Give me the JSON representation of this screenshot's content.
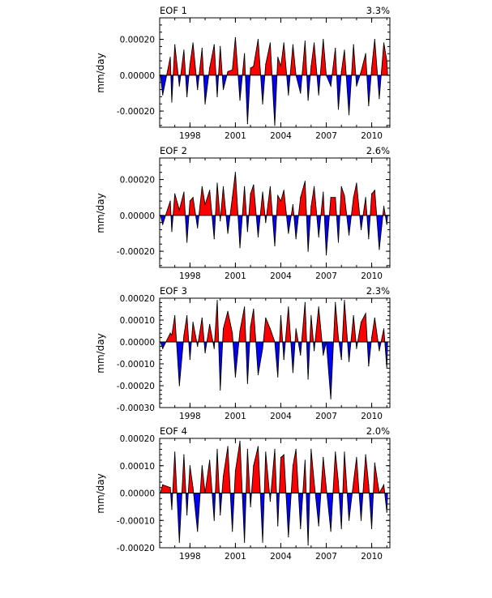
{
  "colors": {
    "positive": "#ff0000",
    "negative": "#0000ff",
    "line": "#000000"
  },
  "chart_data": [
    {
      "type": "area",
      "title": "EOF 1",
      "subtitle": "3.3%",
      "ylabel": "mm/day",
      "ylim": [
        -0.00029,
        0.00032
      ],
      "yticks": [
        -0.0002,
        0.0,
        0.0002
      ],
      "ytick_labels": [
        "-0.00020",
        "0.00000",
        "0.00020"
      ],
      "xlim": [
        1996.0,
        2011.2
      ],
      "xticks": [
        1998,
        2001,
        2004,
        2007,
        2010
      ],
      "xtick_labels": [
        "1998",
        "2001",
        "2004",
        "2007",
        "2010"
      ],
      "grid": false,
      "x": [
        1996.2,
        1996.7,
        1996.8,
        1997.0,
        1997.3,
        1997.6,
        1997.8,
        1998.0,
        1998.2,
        1998.5,
        1998.8,
        1999.0,
        1999.3,
        1999.6,
        1999.8,
        2000.0,
        2000.2,
        2000.5,
        2000.8,
        2001.0,
        2001.3,
        2001.6,
        2001.8,
        2002.0,
        2002.2,
        2002.5,
        2002.8,
        2003.0,
        2003.3,
        2003.6,
        2003.8,
        2004.0,
        2004.2,
        2004.5,
        2004.8,
        2005.0,
        2005.3,
        2005.6,
        2005.8,
        2006.0,
        2006.2,
        2006.5,
        2006.8,
        2007.0,
        2007.3,
        2007.6,
        2007.8,
        2008.0,
        2008.2,
        2008.5,
        2008.8,
        2009.0,
        2009.3,
        2009.6,
        2009.8,
        2010.0,
        2010.2,
        2010.5,
        2010.8,
        2011.0
      ],
      "values": [
        -0.00011,
        0.0001,
        -0.00015,
        0.00017,
        -6e-05,
        0.00014,
        -0.00012,
        6e-05,
        0.00018,
        -8e-05,
        0.00015,
        -0.00016,
        4e-05,
        0.00017,
        -0.00012,
        0.00016,
        -8e-05,
        2e-05,
        3e-05,
        0.00021,
        -0.00014,
        0.00012,
        -0.00027,
        4e-05,
        5e-05,
        0.0002,
        -0.00016,
        6e-05,
        0.00018,
        -0.00028,
        0.0001,
        5e-05,
        0.00018,
        -0.00011,
        0.00017,
        0.0,
        -0.0001,
        0.00019,
        -0.00014,
        5e-05,
        0.00018,
        -0.00011,
        0.0002,
        0.0,
        -6e-05,
        0.00015,
        -0.00019,
        2e-05,
        0.00014,
        -0.00022,
        0.00017,
        -6e-05,
        2e-05,
        0.00012,
        -0.00017,
        4e-05,
        0.0002,
        -0.00013,
        0.00018,
        8e-05
      ]
    },
    {
      "type": "area",
      "title": "EOF 2",
      "subtitle": "2.6%",
      "ylabel": "mm/day",
      "ylim": [
        -0.00029,
        0.00032
      ],
      "yticks": [
        -0.0002,
        0.0,
        0.0002
      ],
      "ytick_labels": [
        "-0.00020",
        "0.00000",
        "0.00020"
      ],
      "xlim": [
        1996.0,
        2011.2
      ],
      "xticks": [
        1998,
        2001,
        2004,
        2007,
        2010
      ],
      "xtick_labels": [
        "1998",
        "2001",
        "2004",
        "2007",
        "2010"
      ],
      "grid": false,
      "x": [
        1996.2,
        1996.7,
        1996.8,
        1997.0,
        1997.3,
        1997.6,
        1997.8,
        1998.0,
        1998.2,
        1998.5,
        1998.8,
        1999.0,
        1999.3,
        1999.6,
        1999.8,
        2000.0,
        2000.2,
        2000.5,
        2000.8,
        2001.0,
        2001.3,
        2001.6,
        2001.8,
        2002.0,
        2002.2,
        2002.5,
        2002.8,
        2003.0,
        2003.3,
        2003.6,
        2003.8,
        2004.0,
        2004.2,
        2004.5,
        2004.8,
        2005.0,
        2005.3,
        2005.6,
        2005.8,
        2006.0,
        2006.2,
        2006.5,
        2006.8,
        2007.0,
        2007.3,
        2007.6,
        2007.8,
        2008.0,
        2008.2,
        2008.5,
        2008.8,
        2009.0,
        2009.3,
        2009.6,
        2009.8,
        2010.0,
        2010.2,
        2010.5,
        2010.8,
        2011.0
      ],
      "values": [
        -5e-05,
        8e-05,
        -9e-05,
        0.00012,
        3e-05,
        0.00013,
        -0.00015,
        8e-05,
        0.0001,
        -7e-05,
        0.00016,
        6e-05,
        0.00014,
        -0.00013,
        0.00018,
        -3e-05,
        0.00016,
        -0.0001,
        0.0001,
        0.00024,
        -0.00018,
        0.00016,
        -9e-05,
        0.00012,
        0.00017,
        -0.00012,
        0.00013,
        -4e-05,
        0.00016,
        -0.00017,
        0.00011,
        8e-05,
        0.00014,
        -0.0001,
        6e-05,
        -0.00013,
        0.0001,
        0.00019,
        -0.0002,
        5e-05,
        0.00016,
        -0.00012,
        0.00013,
        -0.00022,
        0.0001,
        0.0001,
        -0.00015,
        0.00016,
        0.00011,
        -0.00011,
        0.0001,
        0.00018,
        -8e-05,
        0.0001,
        -0.00013,
        0.00012,
        0.00014,
        -0.00019,
        5e-05,
        -5e-05
      ]
    },
    {
      "type": "area",
      "title": "EOF 3",
      "subtitle": "2.3%",
      "ylabel": "mm/day",
      "ylim": [
        -0.0003,
        0.0002
      ],
      "yticks": [
        -0.0003,
        -0.0002,
        -0.0001,
        0.0,
        0.0001,
        0.0002
      ],
      "ytick_labels": [
        "-0.00030",
        "-0.00020",
        "-0.00010",
        "0.00000",
        "0.00010",
        "0.00020"
      ],
      "xlim": [
        1996.0,
        2011.2
      ],
      "xticks": [
        1998,
        2001,
        2004,
        2007,
        2010
      ],
      "xtick_labels": [
        "1998",
        "2001",
        "2004",
        "2007",
        "2010"
      ],
      "grid": false,
      "x": [
        1996.2,
        1996.7,
        1996.8,
        1997.0,
        1997.3,
        1997.6,
        1997.8,
        1998.0,
        1998.2,
        1998.5,
        1998.8,
        1999.0,
        1999.3,
        1999.6,
        1999.8,
        2000.0,
        2000.2,
        2000.5,
        2000.8,
        2001.0,
        2001.3,
        2001.6,
        2001.8,
        2002.0,
        2002.2,
        2002.5,
        2002.8,
        2003.0,
        2003.3,
        2003.6,
        2003.8,
        2004.0,
        2004.2,
        2004.5,
        2004.8,
        2005.0,
        2005.3,
        2005.6,
        2005.8,
        2006.0,
        2006.2,
        2006.5,
        2006.8,
        2007.0,
        2007.3,
        2007.6,
        2007.8,
        2008.0,
        2008.2,
        2008.5,
        2008.8,
        2009.0,
        2009.3,
        2009.6,
        2009.8,
        2010.0,
        2010.2,
        2010.5,
        2010.8,
        2011.0
      ],
      "values": [
        -3e-05,
        4e-05,
        3e-05,
        0.00012,
        -0.0002,
        3e-05,
        0.00012,
        -8e-05,
        9e-05,
        -2e-05,
        0.00011,
        -5e-05,
        8e-05,
        -3e-05,
        0.00019,
        -0.00022,
        6e-05,
        0.00014,
        4e-05,
        -0.00016,
        5e-05,
        0.00016,
        -0.00019,
        7e-05,
        0.00015,
        -0.00015,
        -3e-05,
        0.00011,
        6e-05,
        0.0,
        -0.00016,
        0.00012,
        -8e-05,
        0.00016,
        -0.00014,
        6e-05,
        -6e-05,
        0.00018,
        -0.00017,
        0.00012,
        -4e-05,
        0.00016,
        -6e-05,
        0.0,
        -0.00026,
        0.00018,
        2e-05,
        -8e-05,
        0.00019,
        -9e-05,
        0.00012,
        -3e-05,
        9e-05,
        0.00013,
        -0.00011,
        2e-05,
        0.00011,
        -4e-05,
        6e-05,
        -0.00012
      ]
    },
    {
      "type": "area",
      "title": "EOF 4",
      "subtitle": "2.0%",
      "ylabel": "mm/day",
      "ylim": [
        -0.0002,
        0.0002
      ],
      "yticks": [
        -0.0002,
        -0.0001,
        0.0,
        0.0001,
        0.0002
      ],
      "ytick_labels": [
        "-0.00020",
        "-0.00010",
        "0.00000",
        "0.00010",
        "0.00020"
      ],
      "xlim": [
        1996.0,
        2011.2
      ],
      "xticks": [
        1998,
        2001,
        2004,
        2007,
        2010
      ],
      "xtick_labels": [
        "1998",
        "2001",
        "2004",
        "2007",
        "2010"
      ],
      "grid": false,
      "x": [
        1996.2,
        1996.7,
        1996.8,
        1997.0,
        1997.3,
        1997.6,
        1997.8,
        1998.0,
        1998.2,
        1998.5,
        1998.8,
        1999.0,
        1999.3,
        1999.6,
        1999.8,
        2000.0,
        2000.2,
        2000.5,
        2000.8,
        2001.0,
        2001.3,
        2001.6,
        2001.8,
        2002.0,
        2002.2,
        2002.5,
        2002.8,
        2003.0,
        2003.3,
        2003.6,
        2003.8,
        2004.0,
        2004.2,
        2004.5,
        2004.8,
        2005.0,
        2005.3,
        2005.6,
        2005.8,
        2006.0,
        2006.2,
        2006.5,
        2006.8,
        2007.0,
        2007.3,
        2007.6,
        2007.8,
        2008.0,
        2008.2,
        2008.5,
        2008.8,
        2009.0,
        2009.3,
        2009.6,
        2009.8,
        2010.0,
        2010.2,
        2010.5,
        2010.8,
        2011.0
      ],
      "values": [
        3e-05,
        2e-05,
        -6e-05,
        0.00015,
        -0.00018,
        0.00014,
        -8e-05,
        0.0001,
        2e-05,
        -0.00014,
        0.0001,
        0.0,
        0.00012,
        -0.0001,
        0.00016,
        -8e-05,
        6e-05,
        0.00017,
        -0.00014,
        8e-05,
        0.00019,
        -0.00018,
        0.00016,
        -5e-05,
        0.0001,
        0.00017,
        -0.00018,
        0.00015,
        -3e-05,
        0.00016,
        -0.00012,
        0.00013,
        0.00014,
        -0.00016,
        0.0001,
        0.00016,
        -0.00013,
        0.00012,
        -0.00019,
        0.00016,
        4e-05,
        -0.00012,
        0.00013,
        2e-05,
        -0.00014,
        0.00015,
        4e-05,
        -0.00013,
        0.00015,
        -0.0001,
        4e-05,
        0.00013,
        -0.0001,
        0.00014,
        3e-05,
        -0.00013,
        0.00011,
        0.0,
        3e-05,
        -7e-05
      ]
    }
  ]
}
